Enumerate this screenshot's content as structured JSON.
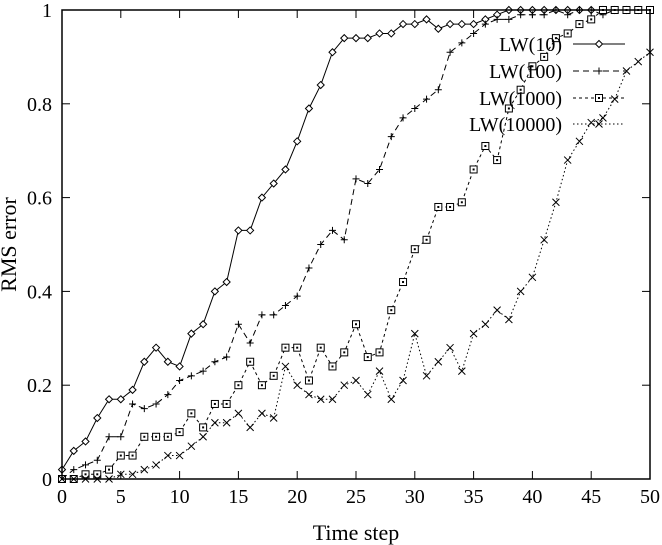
{
  "chart_data": {
    "type": "line",
    "title": "",
    "xlabel": "Time step",
    "ylabel": "RMS error",
    "xlim": [
      0,
      50
    ],
    "ylim": [
      0,
      1
    ],
    "xticks": [
      "0",
      "5",
      "10",
      "15",
      "20",
      "25",
      "30",
      "35",
      "40",
      "45",
      "50"
    ],
    "yticks": [
      "0",
      "0.2",
      "0.4",
      "0.6",
      "0.8",
      "1"
    ],
    "grid": false,
    "legend": "top-right",
    "x": [
      0,
      1,
      2,
      3,
      4,
      5,
      6,
      7,
      8,
      9,
      10,
      11,
      12,
      13,
      14,
      15,
      16,
      17,
      18,
      19,
      20,
      21,
      22,
      23,
      24,
      25,
      26,
      27,
      28,
      29,
      30,
      31,
      32,
      33,
      34,
      35,
      36,
      37,
      38,
      39,
      40,
      41,
      42,
      43,
      44,
      45,
      46,
      47,
      48,
      49,
      50
    ],
    "series": [
      {
        "name": "LW(10)",
        "line_style": "solid",
        "marker": "diamond",
        "values": [
          0.02,
          0.06,
          0.08,
          0.13,
          0.17,
          0.17,
          0.19,
          0.25,
          0.28,
          0.25,
          0.24,
          0.31,
          0.33,
          0.4,
          0.42,
          0.53,
          0.53,
          0.6,
          0.63,
          0.66,
          0.72,
          0.79,
          0.84,
          0.91,
          0.94,
          0.94,
          0.94,
          0.95,
          0.95,
          0.97,
          0.97,
          0.98,
          0.96,
          0.97,
          0.97,
          0.97,
          0.98,
          0.99,
          1.0,
          1.0,
          1.0,
          1.0,
          1.0,
          1.0,
          1.0,
          1.0,
          1.0,
          1.0,
          1.0,
          1.0,
          1.0
        ]
      },
      {
        "name": "LW(100)",
        "line_style": "dashed",
        "marker": "plus",
        "values": [
          0.0,
          0.02,
          0.03,
          0.04,
          0.09,
          0.09,
          0.16,
          0.15,
          0.16,
          0.18,
          0.21,
          0.22,
          0.23,
          0.25,
          0.26,
          0.33,
          0.29,
          0.35,
          0.35,
          0.37,
          0.39,
          0.45,
          0.5,
          0.53,
          0.51,
          0.64,
          0.63,
          0.66,
          0.73,
          0.77,
          0.79,
          0.81,
          0.83,
          0.91,
          0.93,
          0.95,
          0.97,
          0.98,
          0.98,
          0.99,
          0.99,
          0.99,
          1.0,
          0.99,
          1.0,
          1.0,
          0.99,
          1.0,
          1.0,
          1.0,
          1.0
        ]
      },
      {
        "name": "LW(1000)",
        "line_style": "short-dashed",
        "marker": "square",
        "values": [
          0.0,
          0.0,
          0.01,
          0.01,
          0.02,
          0.05,
          0.05,
          0.09,
          0.09,
          0.09,
          0.1,
          0.14,
          0.11,
          0.16,
          0.16,
          0.2,
          0.25,
          0.2,
          0.22,
          0.28,
          0.28,
          0.21,
          0.28,
          0.24,
          0.27,
          0.33,
          0.26,
          0.27,
          0.36,
          0.42,
          0.49,
          0.51,
          0.58,
          0.58,
          0.59,
          0.66,
          0.71,
          0.68,
          0.79,
          0.83,
          0.88,
          0.9,
          0.94,
          0.95,
          0.97,
          0.98,
          1.0,
          1.0,
          1.0,
          1.0,
          1.0
        ]
      },
      {
        "name": "LW(10000)",
        "line_style": "dotted",
        "marker": "cross",
        "values": [
          0.0,
          0.0,
          0.0,
          0.0,
          0.0,
          0.01,
          0.01,
          0.02,
          0.03,
          0.05,
          0.05,
          0.07,
          0.09,
          0.12,
          0.12,
          0.14,
          0.11,
          0.14,
          0.13,
          0.24,
          0.2,
          0.18,
          0.17,
          0.17,
          0.2,
          0.21,
          0.18,
          0.23,
          0.17,
          0.21,
          0.31,
          0.22,
          0.25,
          0.28,
          0.23,
          0.31,
          0.33,
          0.36,
          0.34,
          0.4,
          0.43,
          0.51,
          0.59,
          0.68,
          0.72,
          0.76,
          0.77,
          0.81,
          0.87,
          0.89,
          0.91
        ]
      }
    ]
  }
}
